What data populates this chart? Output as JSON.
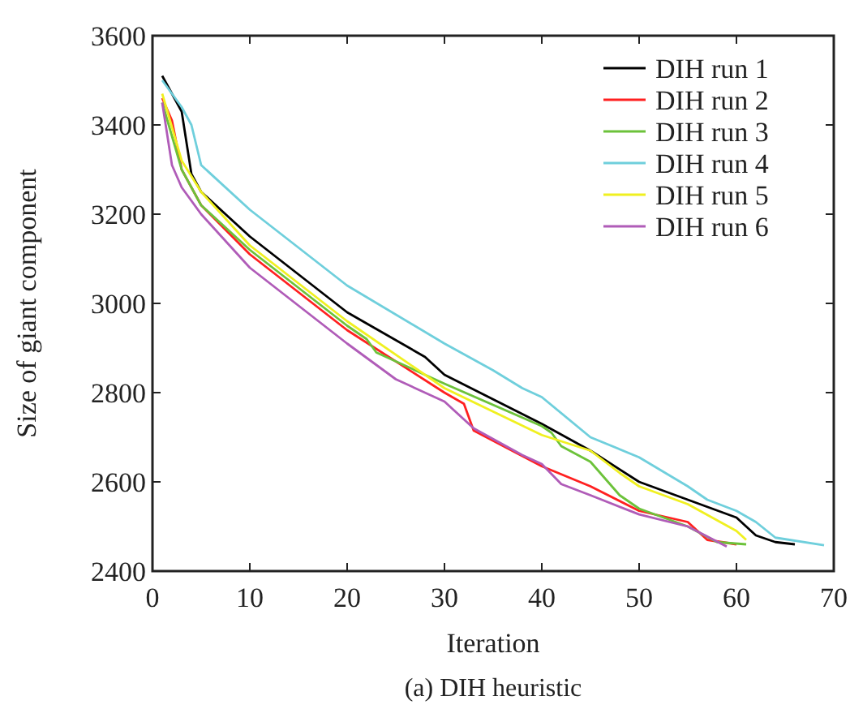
{
  "chart_data": {
    "type": "line",
    "title": "(a) DIH heuristic",
    "xlabel": "Iteration",
    "ylabel": "Size of giant component",
    "xlim": [
      0,
      70
    ],
    "xticks": [
      0,
      10,
      20,
      30,
      40,
      50,
      60,
      70
    ],
    "ylim": [
      2400,
      3600
    ],
    "yticks": [
      2400,
      2600,
      2800,
      3000,
      3200,
      3400,
      3600
    ],
    "legend": "top right",
    "grid": false,
    "marker": "none",
    "line_style": "solid",
    "series": [
      {
        "name": "DIH run 1",
        "color": "#000000",
        "x": [
          1,
          3,
          4,
          5,
          10,
          20,
          28,
          30,
          40,
          45,
          50,
          55,
          60,
          62,
          64,
          66
        ],
        "values": [
          3510,
          3430,
          3290,
          3250,
          3150,
          2980,
          2880,
          2840,
          2730,
          2670,
          2600,
          2560,
          2520,
          2480,
          2465,
          2460
        ]
      },
      {
        "name": "DIH run 2",
        "color": "#ff2020",
        "x": [
          1,
          2,
          3,
          5,
          10,
          20,
          30,
          32,
          33,
          40,
          45,
          50,
          55,
          57,
          60
        ],
        "values": [
          3460,
          3410,
          3300,
          3220,
          3110,
          2940,
          2800,
          2775,
          2715,
          2635,
          2590,
          2535,
          2510,
          2470,
          2460
        ]
      },
      {
        "name": "DIH run 3",
        "color": "#6cc23a",
        "x": [
          1,
          3,
          5,
          10,
          20,
          22,
          23,
          30,
          40,
          41,
          42,
          45,
          48,
          50,
          55,
          58,
          61
        ],
        "values": [
          3450,
          3300,
          3220,
          3120,
          2950,
          2920,
          2890,
          2820,
          2725,
          2710,
          2680,
          2645,
          2570,
          2540,
          2500,
          2465,
          2460
        ]
      },
      {
        "name": "DIH run 4",
        "color": "#6fcfdc",
        "x": [
          1,
          3,
          4,
          5,
          10,
          20,
          30,
          35,
          38,
          40,
          45,
          50,
          55,
          57,
          60,
          62,
          64,
          69
        ],
        "values": [
          3500,
          3440,
          3400,
          3310,
          3210,
          3040,
          2910,
          2850,
          2810,
          2790,
          2700,
          2655,
          2590,
          2560,
          2535,
          2510,
          2475,
          2458
        ]
      },
      {
        "name": "DIH run 5",
        "color": "#f0f020",
        "x": [
          1,
          3,
          5,
          10,
          20,
          30,
          40,
          45,
          48,
          50,
          55,
          60,
          61
        ],
        "values": [
          3470,
          3320,
          3250,
          3130,
          2960,
          2810,
          2705,
          2670,
          2620,
          2590,
          2550,
          2490,
          2470
        ]
      },
      {
        "name": "DIH run 6",
        "color": "#b05cb8",
        "x": [
          1,
          2,
          3,
          5,
          10,
          20,
          25,
          30,
          33,
          38,
          40,
          42,
          45,
          50,
          55,
          59
        ],
        "values": [
          3450,
          3310,
          3260,
          3200,
          3080,
          2910,
          2830,
          2780,
          2720,
          2660,
          2640,
          2595,
          2570,
          2527,
          2500,
          2455
        ]
      }
    ]
  }
}
